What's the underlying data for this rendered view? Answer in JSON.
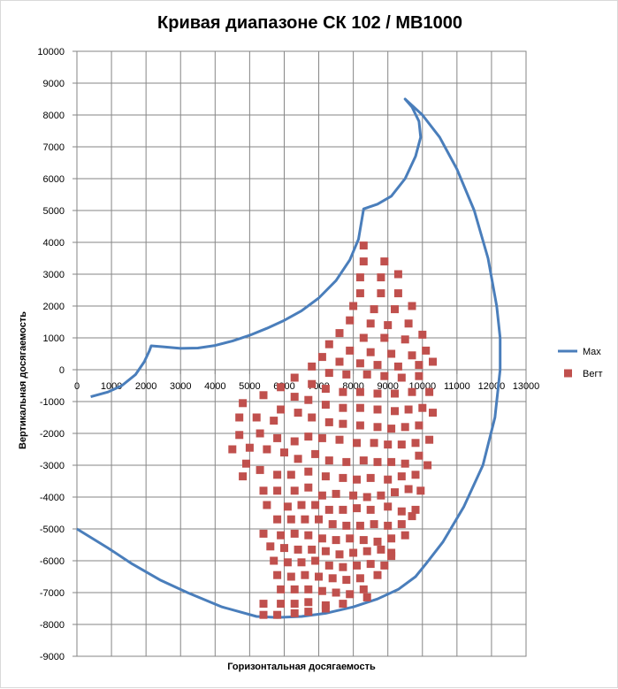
{
  "chart_data": {
    "type": "scatter",
    "title": "Кривая диапазоне СК 102 / МВ1000",
    "xlabel": "Горизонтальная досягаемость",
    "ylabel": "Вертикальная досягаемость",
    "xlim": [
      0,
      13000
    ],
    "ylim": [
      -9000,
      10000
    ],
    "xticks": [
      0,
      1000,
      2000,
      3000,
      4000,
      5000,
      6000,
      7000,
      8000,
      9000,
      10000,
      11000,
      12000,
      13000
    ],
    "yticks": [
      10000,
      9000,
      8000,
      7000,
      6000,
      5000,
      4000,
      3000,
      2000,
      1000,
      0,
      -1000,
      -2000,
      -3000,
      -4000,
      -5000,
      -6000,
      -7000,
      -8000,
      -9000
    ],
    "grid": true,
    "legend": "right",
    "series": [
      {
        "name": "Max",
        "kind": "line",
        "color": "#4a7ebb",
        "points": [
          [
            400,
            -850
          ],
          [
            900,
            -700
          ],
          [
            1300,
            -500
          ],
          [
            1700,
            -150
          ],
          [
            1950,
            250
          ],
          [
            2100,
            600
          ],
          [
            2150,
            750
          ],
          [
            2500,
            720
          ],
          [
            3000,
            670
          ],
          [
            3500,
            680
          ],
          [
            4000,
            760
          ],
          [
            4500,
            900
          ],
          [
            5000,
            1080
          ],
          [
            5500,
            1300
          ],
          [
            6000,
            1550
          ],
          [
            6500,
            1850
          ],
          [
            7000,
            2250
          ],
          [
            7500,
            2800
          ],
          [
            7900,
            3450
          ],
          [
            8150,
            4100
          ],
          [
            8300,
            5050
          ],
          [
            8700,
            5200
          ],
          [
            9100,
            5450
          ],
          [
            9500,
            6000
          ],
          [
            9800,
            6700
          ],
          [
            9950,
            7300
          ],
          [
            9900,
            7800
          ],
          [
            9700,
            8250
          ],
          [
            9500,
            8500
          ],
          [
            10000,
            8000
          ],
          [
            10500,
            7300
          ],
          [
            11000,
            6300
          ],
          [
            11500,
            5000
          ],
          [
            11900,
            3500
          ],
          [
            12150,
            2000
          ],
          [
            12250,
            1000
          ],
          [
            12250,
            0
          ],
          [
            12100,
            -1500
          ],
          [
            11750,
            -3000
          ],
          [
            11200,
            -4300
          ],
          [
            10600,
            -5400
          ],
          [
            10100,
            -6100
          ],
          [
            9800,
            -6500
          ],
          [
            9300,
            -6900
          ],
          [
            8700,
            -7200
          ],
          [
            8000,
            -7450
          ],
          [
            7200,
            -7650
          ],
          [
            6500,
            -7750
          ],
          [
            5800,
            -7780
          ],
          [
            5200,
            -7750
          ],
          [
            4200,
            -7450
          ],
          [
            3200,
            -7000
          ],
          [
            2400,
            -6600
          ],
          [
            1600,
            -6100
          ],
          [
            900,
            -5600
          ],
          [
            0,
            -5000
          ]
        ]
      },
      {
        "name": "Вегт",
        "kind": "scatter",
        "color": "#c0504d",
        "points": [
          [
            8300,
            3900
          ],
          [
            8300,
            3400
          ],
          [
            8900,
            3400
          ],
          [
            9300,
            3000
          ],
          [
            8200,
            2900
          ],
          [
            8800,
            2900
          ],
          [
            8200,
            2400
          ],
          [
            8800,
            2400
          ],
          [
            9300,
            2400
          ],
          [
            8000,
            2000
          ],
          [
            8600,
            1900
          ],
          [
            9200,
            1900
          ],
          [
            9700,
            2000
          ],
          [
            7900,
            1550
          ],
          [
            8500,
            1450
          ],
          [
            9000,
            1400
          ],
          [
            9600,
            1450
          ],
          [
            7600,
            1150
          ],
          [
            8300,
            1000
          ],
          [
            8900,
            1000
          ],
          [
            9500,
            950
          ],
          [
            10000,
            1100
          ],
          [
            7300,
            800
          ],
          [
            7900,
            600
          ],
          [
            8500,
            550
          ],
          [
            9100,
            500
          ],
          [
            9700,
            450
          ],
          [
            10100,
            600
          ],
          [
            7100,
            400
          ],
          [
            7600,
            250
          ],
          [
            8200,
            200
          ],
          [
            8700,
            150
          ],
          [
            9300,
            100
          ],
          [
            9900,
            150
          ],
          [
            10300,
            250
          ],
          [
            6800,
            100
          ],
          [
            7300,
            -100
          ],
          [
            7800,
            -150
          ],
          [
            8400,
            -150
          ],
          [
            8900,
            -200
          ],
          [
            9400,
            -250
          ],
          [
            9900,
            -200
          ],
          [
            6300,
            -250
          ],
          [
            6800,
            -450
          ],
          [
            7200,
            -600
          ],
          [
            7700,
            -700
          ],
          [
            8200,
            -700
          ],
          [
            8700,
            -750
          ],
          [
            9200,
            -750
          ],
          [
            9700,
            -700
          ],
          [
            10200,
            -700
          ],
          [
            5900,
            -550
          ],
          [
            6300,
            -850
          ],
          [
            6700,
            -950
          ],
          [
            7200,
            -1100
          ],
          [
            7700,
            -1200
          ],
          [
            8200,
            -1200
          ],
          [
            8700,
            -1250
          ],
          [
            9200,
            -1300
          ],
          [
            9600,
            -1250
          ],
          [
            10000,
            -1200
          ],
          [
            10300,
            -1350
          ],
          [
            4800,
            -1050
          ],
          [
            5400,
            -800
          ],
          [
            5900,
            -1250
          ],
          [
            6400,
            -1350
          ],
          [
            6800,
            -1500
          ],
          [
            7300,
            -1650
          ],
          [
            7700,
            -1700
          ],
          [
            8200,
            -1750
          ],
          [
            8700,
            -1800
          ],
          [
            9100,
            -1850
          ],
          [
            9500,
            -1800
          ],
          [
            9900,
            -1750
          ],
          [
            4700,
            -1500
          ],
          [
            5200,
            -1500
          ],
          [
            5700,
            -1600
          ],
          [
            4700,
            -2050
          ],
          [
            5300,
            -2000
          ],
          [
            5800,
            -2150
          ],
          [
            6300,
            -2250
          ],
          [
            6700,
            -2100
          ],
          [
            7100,
            -2150
          ],
          [
            7600,
            -2200
          ],
          [
            8100,
            -2300
          ],
          [
            8600,
            -2300
          ],
          [
            9000,
            -2350
          ],
          [
            9400,
            -2350
          ],
          [
            9800,
            -2300
          ],
          [
            10200,
            -2200
          ],
          [
            4500,
            -2500
          ],
          [
            5000,
            -2450
          ],
          [
            5500,
            -2500
          ],
          [
            6000,
            -2600
          ],
          [
            6400,
            -2800
          ],
          [
            6900,
            -2650
          ],
          [
            7300,
            -2850
          ],
          [
            7800,
            -2900
          ],
          [
            8300,
            -2850
          ],
          [
            8700,
            -2900
          ],
          [
            9100,
            -2900
          ],
          [
            9500,
            -2950
          ],
          [
            9900,
            -2700
          ],
          [
            10150,
            -3000
          ],
          [
            4900,
            -2950
          ],
          [
            5300,
            -3150
          ],
          [
            5800,
            -3300
          ],
          [
            6200,
            -3300
          ],
          [
            6700,
            -3200
          ],
          [
            7200,
            -3350
          ],
          [
            7700,
            -3400
          ],
          [
            8100,
            -3450
          ],
          [
            8500,
            -3400
          ],
          [
            9000,
            -3450
          ],
          [
            9400,
            -3350
          ],
          [
            9800,
            -3300
          ],
          [
            9950,
            -3800
          ],
          [
            4800,
            -3350
          ],
          [
            5400,
            -3800
          ],
          [
            5800,
            -3800
          ],
          [
            6300,
            -3800
          ],
          [
            6700,
            -3700
          ],
          [
            7100,
            -3950
          ],
          [
            7500,
            -3900
          ],
          [
            8000,
            -3950
          ],
          [
            8400,
            -4000
          ],
          [
            8800,
            -3950
          ],
          [
            9200,
            -3850
          ],
          [
            9600,
            -3750
          ],
          [
            5500,
            -4250
          ],
          [
            6100,
            -4300
          ],
          [
            6500,
            -4250
          ],
          [
            6900,
            -4250
          ],
          [
            7300,
            -4400
          ],
          [
            7700,
            -4400
          ],
          [
            8100,
            -4350
          ],
          [
            8500,
            -4400
          ],
          [
            9000,
            -4300
          ],
          [
            9400,
            -4450
          ],
          [
            9800,
            -4400
          ],
          [
            5800,
            -4700
          ],
          [
            6200,
            -4700
          ],
          [
            6600,
            -4700
          ],
          [
            7000,
            -4700
          ],
          [
            7400,
            -4850
          ],
          [
            7800,
            -4900
          ],
          [
            8200,
            -4900
          ],
          [
            8600,
            -4850
          ],
          [
            9000,
            -4900
          ],
          [
            9400,
            -4850
          ],
          [
            9700,
            -4600
          ],
          [
            5400,
            -5150
          ],
          [
            5900,
            -5200
          ],
          [
            6300,
            -5150
          ],
          [
            6700,
            -5200
          ],
          [
            7100,
            -5300
          ],
          [
            7500,
            -5350
          ],
          [
            7900,
            -5300
          ],
          [
            8300,
            -5350
          ],
          [
            8700,
            -5400
          ],
          [
            9100,
            -5300
          ],
          [
            9500,
            -5200
          ],
          [
            5600,
            -5550
          ],
          [
            6000,
            -5600
          ],
          [
            6400,
            -5650
          ],
          [
            6800,
            -5650
          ],
          [
            7200,
            -5700
          ],
          [
            7600,
            -5800
          ],
          [
            8000,
            -5750
          ],
          [
            8400,
            -5700
          ],
          [
            8800,
            -5650
          ],
          [
            9100,
            -5750
          ],
          [
            5700,
            -6000
          ],
          [
            6100,
            -6050
          ],
          [
            6500,
            -6050
          ],
          [
            6900,
            -6000
          ],
          [
            7300,
            -6150
          ],
          [
            7700,
            -6200
          ],
          [
            8100,
            -6150
          ],
          [
            8500,
            -6100
          ],
          [
            8900,
            -6150
          ],
          [
            9100,
            -5850
          ],
          [
            5800,
            -6450
          ],
          [
            6200,
            -6500
          ],
          [
            6600,
            -6450
          ],
          [
            7000,
            -6500
          ],
          [
            7400,
            -6550
          ],
          [
            7800,
            -6600
          ],
          [
            8200,
            -6550
          ],
          [
            8700,
            -6450
          ],
          [
            5900,
            -6900
          ],
          [
            6300,
            -6900
          ],
          [
            6700,
            -6900
          ],
          [
            7100,
            -6950
          ],
          [
            7500,
            -7000
          ],
          [
            7900,
            -7050
          ],
          [
            8300,
            -6900
          ],
          [
            8400,
            -7150
          ],
          [
            5400,
            -7350
          ],
          [
            5900,
            -7350
          ],
          [
            6300,
            -7350
          ],
          [
            6700,
            -7300
          ],
          [
            7200,
            -7400
          ],
          [
            7700,
            -7350
          ],
          [
            5400,
            -7700
          ],
          [
            5800,
            -7700
          ],
          [
            6300,
            -7650
          ],
          [
            6700,
            -7600
          ],
          [
            7200,
            -7500
          ]
        ]
      }
    ]
  }
}
